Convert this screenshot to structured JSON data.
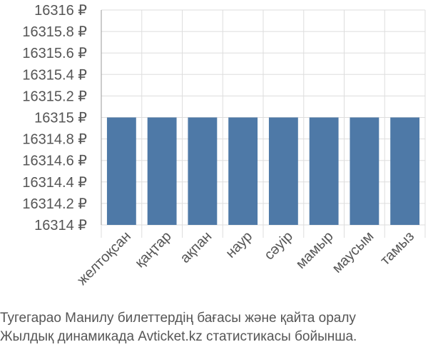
{
  "chart_data": {
    "type": "bar",
    "categories": [
      "желтоқсан",
      "қаңтар",
      "ақпан",
      "наур",
      "сәуір",
      "мамыр",
      "маусым",
      "тамыз"
    ],
    "values": [
      16315,
      16315,
      16315,
      16315,
      16315,
      16315,
      16315,
      16315
    ],
    "ylim": [
      16314,
      16316
    ],
    "yticks": [
      "16314 ₽",
      "16314.2 ₽",
      "16314.4 ₽",
      "16314.6 ₽",
      "16314.8 ₽",
      "16315 ₽",
      "16315.2 ₽",
      "16315.4 ₽",
      "16315.6 ₽",
      "16315.8 ₽",
      "16316 ₽"
    ],
    "grid": true,
    "bar_color": "#4e79a7"
  },
  "caption": {
    "line1": "Тугегарао Манилу билеттердің бағасы және қайта оралу",
    "line2": "Жылдық динамикада Avticket.kz статистикасы бойынша."
  }
}
